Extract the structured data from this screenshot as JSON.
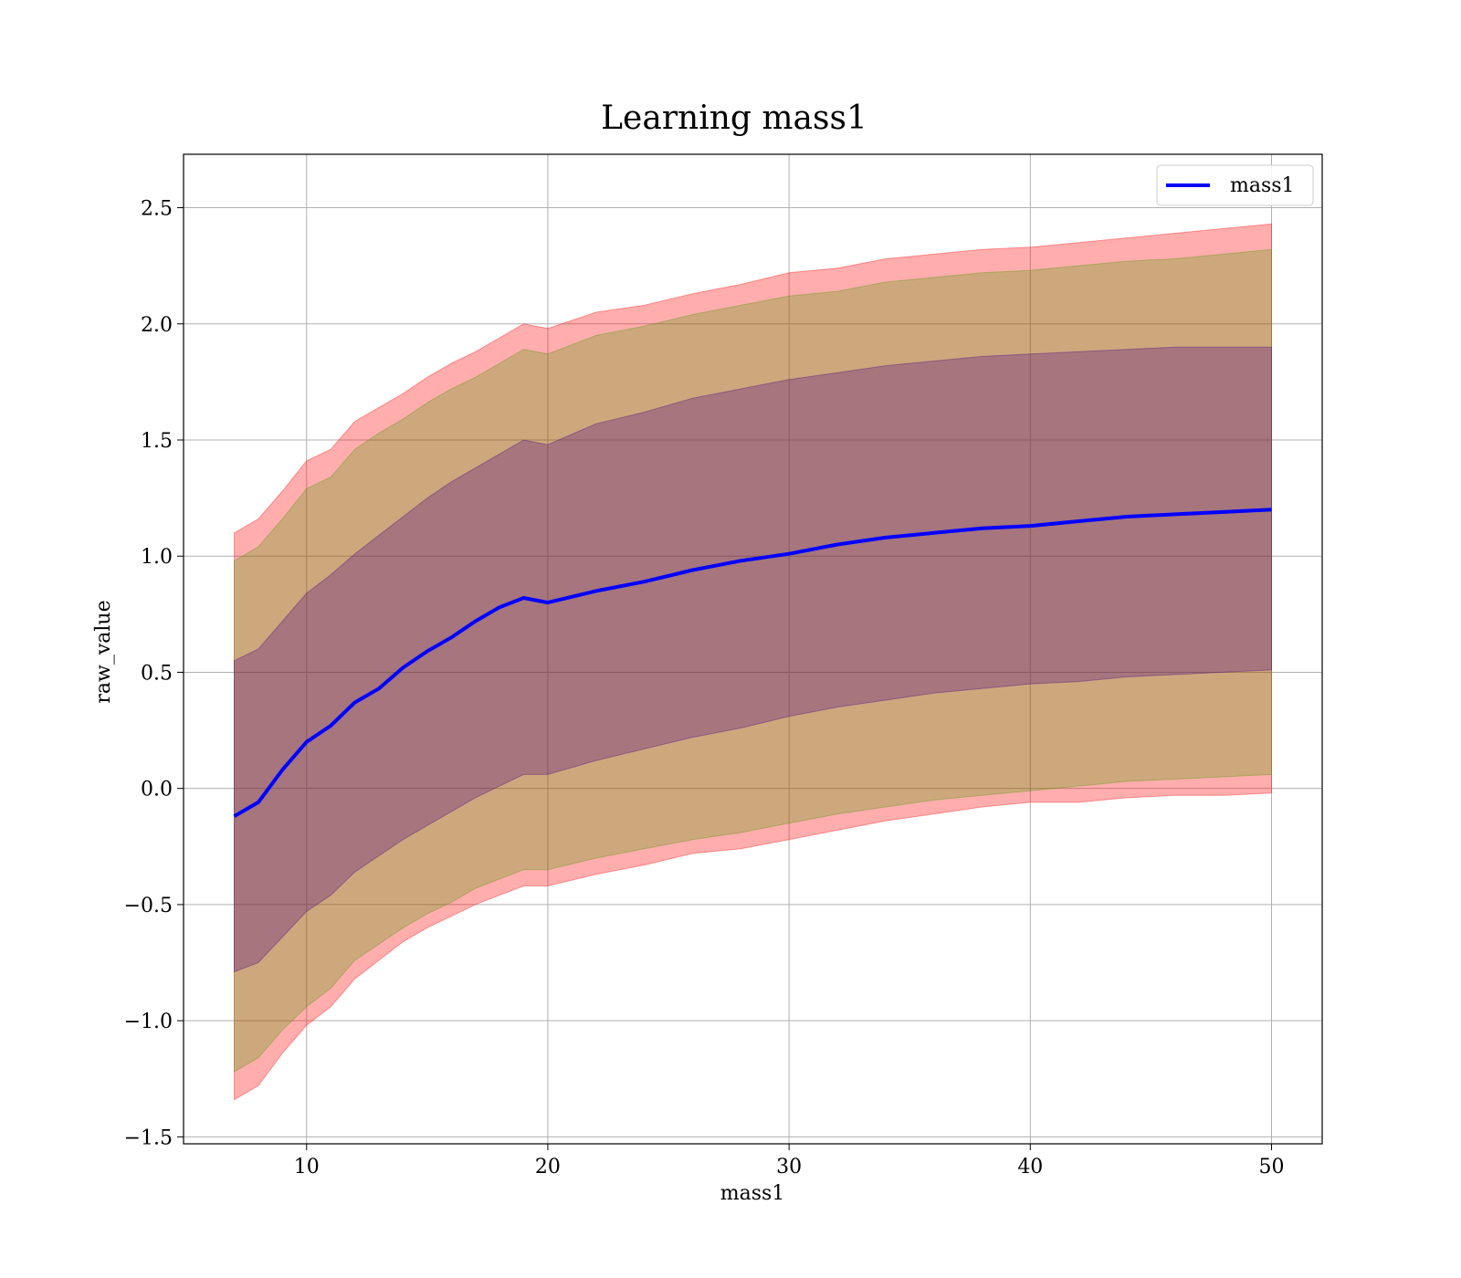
{
  "chart_data": {
    "type": "line",
    "title": "Learning mass1",
    "xlabel": "mass1",
    "ylabel": "raw_value",
    "xlim": [
      4.9,
      52.1
    ],
    "ylim": [
      -1.53,
      2.73
    ],
    "xticks": [
      10,
      20,
      30,
      40,
      50
    ],
    "xtick_labels": [
      "10",
      "20",
      "30",
      "40",
      "50"
    ],
    "yticks": [
      -1.5,
      -1.0,
      -0.5,
      0.0,
      0.5,
      1.0,
      1.5,
      2.0,
      2.5
    ],
    "ytick_labels": [
      "−1.5",
      "−1.0",
      "−0.5",
      "0.0",
      "0.5",
      "1.0",
      "1.5",
      "2.0",
      "2.5"
    ],
    "grid": true,
    "legend": {
      "position": "top-right",
      "entries": [
        "mass1"
      ]
    },
    "x": [
      7,
      8,
      9,
      10,
      11,
      12,
      13,
      14,
      15,
      16,
      17,
      18,
      19,
      20,
      22,
      24,
      26,
      28,
      30,
      32,
      34,
      36,
      38,
      40,
      42,
      44,
      46,
      48,
      50
    ],
    "series": [
      {
        "name": "mass1",
        "color": "#0000ff",
        "values": [
          -0.12,
          -0.06,
          0.08,
          0.2,
          0.27,
          0.37,
          0.43,
          0.52,
          0.59,
          0.65,
          0.72,
          0.78,
          0.82,
          0.8,
          0.85,
          0.89,
          0.94,
          0.98,
          1.01,
          1.05,
          1.08,
          1.1,
          1.12,
          1.13,
          1.15,
          1.17,
          1.18,
          1.19,
          1.2
        ]
      }
    ],
    "bands": [
      {
        "color": "#ff0000",
        "opacity": 0.32,
        "lower": [
          -1.34,
          -1.28,
          -1.14,
          -1.02,
          -0.94,
          -0.82,
          -0.74,
          -0.66,
          -0.6,
          -0.55,
          -0.5,
          -0.46,
          -0.42,
          -0.42,
          -0.37,
          -0.33,
          -0.28,
          -0.26,
          -0.22,
          -0.18,
          -0.14,
          -0.11,
          -0.08,
          -0.06,
          -0.06,
          -0.04,
          -0.03,
          -0.03,
          -0.02
        ],
        "upper": [
          1.1,
          1.16,
          1.28,
          1.41,
          1.46,
          1.58,
          1.64,
          1.7,
          1.77,
          1.83,
          1.88,
          1.94,
          2.0,
          1.98,
          2.05,
          2.08,
          2.13,
          2.17,
          2.22,
          2.24,
          2.28,
          2.3,
          2.32,
          2.33,
          2.35,
          2.37,
          2.39,
          2.41,
          2.43
        ]
      },
      {
        "color": "#4a9a00",
        "opacity": 0.28,
        "lower": [
          -1.22,
          -1.16,
          -1.04,
          -0.94,
          -0.86,
          -0.74,
          -0.67,
          -0.6,
          -0.54,
          -0.49,
          -0.43,
          -0.39,
          -0.35,
          -0.35,
          -0.3,
          -0.26,
          -0.22,
          -0.19,
          -0.15,
          -0.11,
          -0.08,
          -0.05,
          -0.03,
          -0.01,
          0.01,
          0.03,
          0.04,
          0.05,
          0.06
        ],
        "upper": [
          0.98,
          1.04,
          1.16,
          1.29,
          1.34,
          1.46,
          1.53,
          1.59,
          1.66,
          1.72,
          1.77,
          1.83,
          1.89,
          1.87,
          1.95,
          1.99,
          2.04,
          2.08,
          2.12,
          2.14,
          2.18,
          2.2,
          2.22,
          2.23,
          2.25,
          2.27,
          2.28,
          2.3,
          2.32
        ]
      },
      {
        "color": "#4b0082",
        "opacity": 0.3,
        "lower": [
          -0.79,
          -0.75,
          -0.64,
          -0.53,
          -0.46,
          -0.36,
          -0.29,
          -0.22,
          -0.16,
          -0.1,
          -0.04,
          0.01,
          0.06,
          0.06,
          0.12,
          0.17,
          0.22,
          0.26,
          0.31,
          0.35,
          0.38,
          0.41,
          0.43,
          0.45,
          0.46,
          0.48,
          0.49,
          0.5,
          0.51
        ],
        "upper": [
          0.55,
          0.6,
          0.72,
          0.84,
          0.92,
          1.01,
          1.09,
          1.17,
          1.25,
          1.32,
          1.38,
          1.44,
          1.5,
          1.48,
          1.57,
          1.62,
          1.68,
          1.72,
          1.76,
          1.79,
          1.82,
          1.84,
          1.86,
          1.87,
          1.88,
          1.89,
          1.9,
          1.9,
          1.9
        ]
      }
    ]
  }
}
